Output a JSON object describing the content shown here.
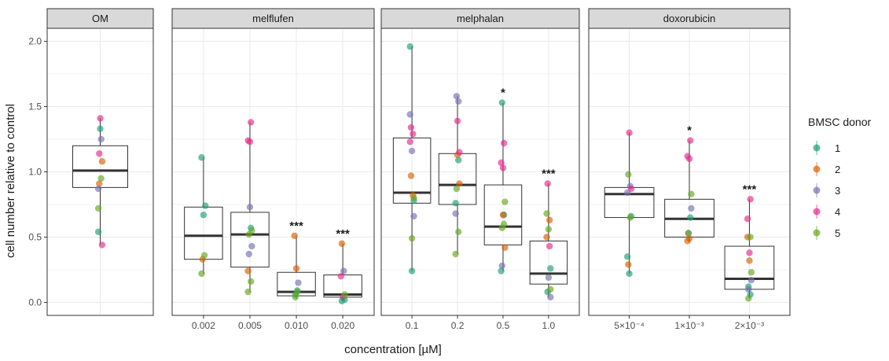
{
  "chart_data": {
    "type": "box+jitter",
    "xlabel": "concentration [µM]",
    "ylabel": "cell number relative to control",
    "ylim": [
      -0.1,
      2.1
    ],
    "yticks": [
      "0.0",
      "0.5",
      "1.0",
      "1.5",
      "2.0"
    ],
    "grid": true,
    "legend": {
      "title": "BMSC donor",
      "placement": "right",
      "entries": [
        "1",
        "2",
        "3",
        "4",
        "5"
      ]
    },
    "colors": {
      "1": "#1b9e77",
      "2": "#d95f02",
      "3": "#7570b3",
      "4": "#e7298a",
      "5": "#66a61e",
      "box": "#333333",
      "strip_bg": "#d9d9d9",
      "grid": "#ebebeb"
    },
    "panels": [
      {
        "name": "OM",
        "groups": [
          {
            "label": "",
            "box": [
              0.88,
              1.01,
              1.2
            ],
            "sig": "",
            "whisk": [
              0.44,
              1.41
            ],
            "points": [
              [
                1,
                0.54
              ],
              [
                1,
                1.33
              ],
              [
                2,
                1.08
              ],
              [
                2,
                0.91
              ],
              [
                3,
                1.25
              ],
              [
                3,
                0.87
              ],
              [
                4,
                1.41
              ],
              [
                4,
                0.44
              ],
              [
                4,
                1.14
              ],
              [
                5,
                0.95
              ],
              [
                5,
                0.72
              ]
            ]
          }
        ]
      },
      {
        "name": "melflufen",
        "groups": [
          {
            "label": "0.002",
            "box": [
              0.33,
              0.51,
              0.73
            ],
            "sig": "",
            "whisk": [
              0.22,
              1.11
            ],
            "points": [
              [
                1,
                1.11
              ],
              [
                1,
                0.67
              ],
              [
                1,
                0.74
              ],
              [
                2,
                0.33
              ],
              [
                5,
                0.36
              ],
              [
                5,
                0.22
              ]
            ]
          },
          {
            "label": "0.005",
            "box": [
              0.27,
              0.52,
              0.69
            ],
            "sig": "",
            "whisk": [
              0.08,
              1.38
            ],
            "points": [
              [
                1,
                0.57
              ],
              [
                2,
                0.24
              ],
              [
                3,
                0.73
              ],
              [
                3,
                0.43
              ],
              [
                3,
                0.37
              ],
              [
                4,
                1.38
              ],
              [
                4,
                1.24
              ],
              [
                4,
                1.23
              ],
              [
                5,
                0.55
              ],
              [
                5,
                0.52
              ],
              [
                5,
                0.16
              ],
              [
                5,
                0.08
              ]
            ]
          },
          {
            "label": "0.010",
            "box": [
              0.05,
              0.08,
              0.23
            ],
            "sig": "***",
            "whisk": [
              0.03,
              0.51
            ],
            "points": [
              [
                1,
                0.06
              ],
              [
                1,
                0.09
              ],
              [
                2,
                0.51
              ],
              [
                2,
                0.26
              ],
              [
                3,
                0.15
              ],
              [
                5,
                0.04
              ],
              [
                5,
                0.08
              ]
            ]
          },
          {
            "label": "0.020",
            "box": [
              0.04,
              0.06,
              0.21
            ],
            "sig": "***",
            "whisk": [
              0.01,
              0.45
            ],
            "points": [
              [
                1,
                0.02
              ],
              [
                2,
                0.45
              ],
              [
                3,
                0.24
              ],
              [
                4,
                0.2
              ],
              [
                4,
                0.04
              ],
              [
                5,
                0.06
              ],
              [
                1,
                0.01
              ]
            ]
          }
        ]
      },
      {
        "name": "melphalan",
        "groups": [
          {
            "label": "0.1",
            "box": [
              0.76,
              0.84,
              1.26
            ],
            "sig": "",
            "whisk": [
              0.24,
              1.96
            ],
            "points": [
              [
                1,
                1.96
              ],
              [
                1,
                0.24
              ],
              [
                1,
                0.78
              ],
              [
                2,
                0.97
              ],
              [
                2,
                0.82
              ],
              [
                3,
                1.44
              ],
              [
                3,
                1.16
              ],
              [
                3,
                0.66
              ],
              [
                4,
                1.34
              ],
              [
                4,
                1.29
              ],
              [
                4,
                1.23
              ],
              [
                5,
                0.49
              ],
              [
                5,
                0.8
              ]
            ]
          },
          {
            "label": "0.2",
            "box": [
              0.75,
              0.9,
              1.14
            ],
            "sig": "",
            "whisk": [
              0.37,
              1.58
            ],
            "points": [
              [
                1,
                1.09
              ],
              [
                1,
                0.76
              ],
              [
                2,
                1.13
              ],
              [
                2,
                0.91
              ],
              [
                3,
                1.58
              ],
              [
                3,
                1.54
              ],
              [
                3,
                0.68
              ],
              [
                4,
                1.39
              ],
              [
                4,
                1.15
              ],
              [
                5,
                0.87
              ],
              [
                5,
                0.54
              ],
              [
                5,
                0.37
              ]
            ]
          },
          {
            "label": "0.5",
            "box": [
              0.44,
              0.58,
              0.9
            ],
            "sig": "*",
            "whisk": [
              0.24,
              1.53
            ],
            "points": [
              [
                1,
                1.53
              ],
              [
                1,
                0.67
              ],
              [
                1,
                0.24
              ],
              [
                2,
                0.67
              ],
              [
                2,
                0.42
              ],
              [
                3,
                0.28
              ],
              [
                4,
                1.22
              ],
              [
                4,
                1.07
              ],
              [
                4,
                1.03
              ],
              [
                5,
                0.77
              ],
              [
                5,
                0.57
              ],
              [
                5,
                0.6
              ]
            ]
          },
          {
            "label": "1.0",
            "box": [
              0.14,
              0.22,
              0.47
            ],
            "sig": "***",
            "whisk": [
              0.04,
              0.91
            ],
            "points": [
              [
                1,
                0.26
              ],
              [
                1,
                0.08
              ],
              [
                2,
                0.63
              ],
              [
                2,
                0.5
              ],
              [
                3,
                0.19
              ],
              [
                3,
                0.04
              ],
              [
                4,
                0.91
              ],
              [
                4,
                0.43
              ],
              [
                5,
                0.68
              ],
              [
                5,
                0.56
              ],
              [
                5,
                0.1
              ]
            ]
          }
        ]
      },
      {
        "name": "doxorubicin",
        "groups": [
          {
            "label": "5×10⁻⁴",
            "box": [
              0.65,
              0.83,
              0.88
            ],
            "sig": "",
            "whisk": [
              0.22,
              1.3
            ],
            "points": [
              [
                1,
                0.35
              ],
              [
                1,
                0.22
              ],
              [
                1,
                0.66
              ],
              [
                2,
                0.29
              ],
              [
                3,
                0.89
              ],
              [
                3,
                0.84
              ],
              [
                4,
                1.3
              ],
              [
                4,
                0.87
              ],
              [
                5,
                0.98
              ],
              [
                5,
                0.65
              ]
            ]
          },
          {
            "label": "1×10⁻³",
            "box": [
              0.5,
              0.64,
              0.79
            ],
            "sig": "*",
            "whisk": [
              0.46,
              1.24
            ],
            "points": [
              [
                1,
                0.65
              ],
              [
                2,
                0.47
              ],
              [
                2,
                0.49
              ],
              [
                3,
                0.72
              ],
              [
                3,
                0.53
              ],
              [
                4,
                1.24
              ],
              [
                4,
                1.12
              ],
              [
                4,
                1.1
              ],
              [
                5,
                0.83
              ],
              [
                5,
                0.53
              ]
            ]
          },
          {
            "label": "2×10⁻³",
            "box": [
              0.1,
              0.18,
              0.43
            ],
            "sig": "***",
            "whisk": [
              0.03,
              0.79
            ],
            "points": [
              [
                1,
                0.12
              ],
              [
                1,
                0.06
              ],
              [
                2,
                0.5
              ],
              [
                2,
                0.32
              ],
              [
                3,
                0.17
              ],
              [
                3,
                0.1
              ],
              [
                4,
                0.79
              ],
              [
                4,
                0.64
              ],
              [
                4,
                0.38
              ],
              [
                5,
                0.23
              ],
              [
                5,
                0.03
              ],
              [
                5,
                0.5
              ]
            ]
          }
        ]
      }
    ]
  }
}
